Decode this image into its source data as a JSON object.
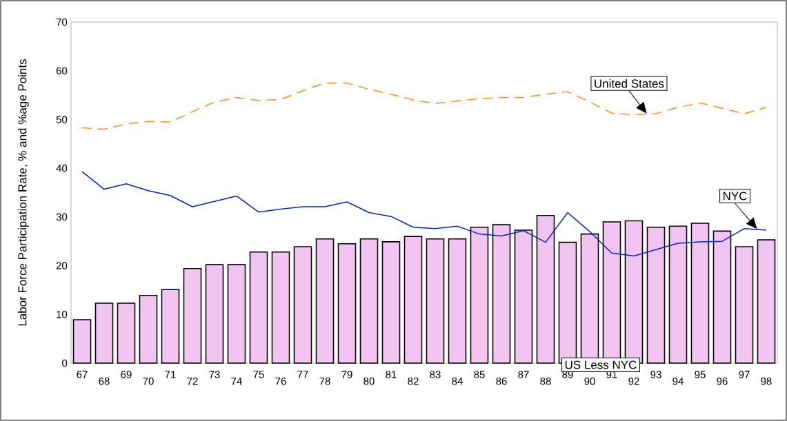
{
  "chart_data": {
    "type": "bar",
    "ylabel": "Labor Force Participation Rate, % and %age Points",
    "categories": [
      "67",
      "68",
      "69",
      "70",
      "71",
      "72",
      "73",
      "74",
      "75",
      "76",
      "77",
      "78",
      "79",
      "80",
      "81",
      "82",
      "83",
      "84",
      "85",
      "86",
      "87",
      "88",
      "89",
      "90",
      "91",
      "92",
      "93",
      "94",
      "95",
      "96",
      "97",
      "98"
    ],
    "series": [
      {
        "name": "US Less NYC",
        "color": "#f2c4f2",
        "values": [
          8.9,
          12.3,
          12.3,
          13.9,
          15.1,
          19.4,
          20.2,
          20.2,
          22.8,
          22.8,
          23.9,
          25.5,
          24.5,
          25.5,
          24.9,
          26.0,
          25.5,
          25.5,
          27.9,
          28.4,
          27.3,
          30.3,
          24.8,
          26.5,
          29.0,
          29.2,
          27.9,
          28.1,
          28.7,
          27.1,
          23.9,
          25.3
        ]
      },
      {
        "name": "NYC",
        "type": "line",
        "color": "#0022cc",
        "line_style": "solid",
        "values": [
          39.3,
          35.7,
          36.8,
          35.4,
          34.4,
          32.1,
          33.2,
          34.3,
          31.0,
          31.6,
          32.1,
          32.1,
          33.1,
          30.9,
          30.1,
          27.9,
          27.6,
          28.1,
          26.5,
          26.1,
          27.2,
          24.8,
          30.9,
          27.0,
          22.6,
          22.0,
          23.3,
          24.6,
          24.9,
          25.0,
          27.6,
          27.3
        ]
      },
      {
        "name": "United States",
        "type": "line",
        "color": "#ff8c1a",
        "line_style": "dashed",
        "values": [
          48.3,
          48.0,
          49.1,
          49.6,
          49.5,
          51.6,
          53.6,
          54.5,
          53.9,
          54.1,
          55.9,
          57.5,
          57.5,
          56.2,
          55.2,
          54.0,
          53.3,
          53.8,
          54.3,
          54.5,
          54.5,
          55.2,
          55.7,
          53.6,
          51.3,
          51.0,
          51.2,
          52.5,
          53.4,
          52.3,
          51.2,
          52.5
        ]
      }
    ],
    "ylim": [
      0,
      70
    ],
    "yticks": [
      0,
      10,
      20,
      30,
      40,
      50,
      60,
      70
    ],
    "grid": false,
    "legend": false,
    "marker": "none"
  }
}
